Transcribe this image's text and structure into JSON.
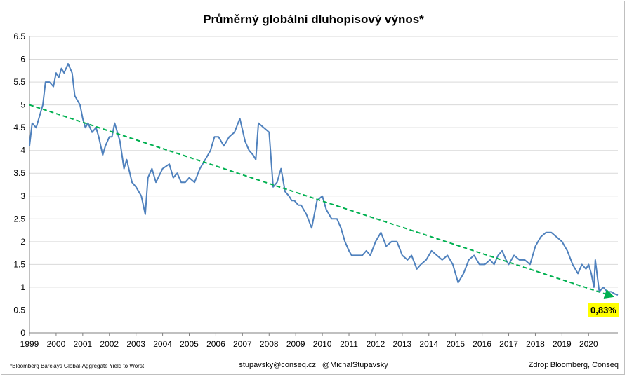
{
  "chart_data": {
    "type": "line",
    "title": "Průměrný globální dluhopisový výnos*",
    "xlabel": "",
    "ylabel": "",
    "x_ticks": [
      "1999",
      "2000",
      "2001",
      "2002",
      "2003",
      "2004",
      "2005",
      "2006",
      "2007",
      "2008",
      "2009",
      "2010",
      "2011",
      "2012",
      "2013",
      "2014",
      "2015",
      "2016",
      "2017",
      "2018",
      "2019",
      "2020"
    ],
    "y_ticks": [
      "0",
      "0.5",
      "1",
      "1.5",
      "2",
      "2.5",
      "3",
      "3.5",
      "4",
      "4.5",
      "5",
      "5.5",
      "6",
      "6.5"
    ],
    "xlim": [
      1999.0,
      2021.1
    ],
    "ylim": [
      0,
      6.5
    ],
    "grid": "horizontal",
    "legend": "none",
    "series": [
      {
        "color": "#4f81bd",
        "x": [
          1999.0,
          1999.1,
          1999.25,
          1999.4,
          1999.5,
          1999.6,
          1999.75,
          1999.9,
          2000.0,
          2000.1,
          2000.2,
          2000.3,
          2000.45,
          2000.6,
          2000.7,
          2000.9,
          2001.0,
          2001.1,
          2001.2,
          2001.35,
          2001.5,
          2001.6,
          2001.75,
          2001.85,
          2002.0,
          2002.1,
          2002.2,
          2002.4,
          2002.55,
          2002.65,
          2002.85,
          2003.0,
          2003.2,
          2003.35,
          2003.45,
          2003.6,
          2003.75,
          2004.0,
          2004.25,
          2004.4,
          2004.55,
          2004.7,
          2004.85,
          2005.0,
          2005.2,
          2005.4,
          2005.6,
          2005.8,
          2005.95,
          2006.1,
          2006.3,
          2006.5,
          2006.7,
          2006.9,
          2007.1,
          2007.25,
          2007.4,
          2007.5,
          2007.6,
          2007.8,
          2008.0,
          2008.15,
          2008.3,
          2008.45,
          2008.6,
          2008.75,
          2008.85,
          2008.95,
          2009.1,
          2009.2,
          2009.4,
          2009.6,
          2009.8,
          2010.0,
          2010.15,
          2010.35,
          2010.55,
          2010.7,
          2010.85,
          2011.0,
          2011.1,
          2011.3,
          2011.5,
          2011.65,
          2011.8,
          2012.0,
          2012.2,
          2012.4,
          2012.6,
          2012.8,
          2013.0,
          2013.2,
          2013.35,
          2013.55,
          2013.7,
          2013.9,
          2014.1,
          2014.3,
          2014.5,
          2014.7,
          2014.9,
          2015.1,
          2015.3,
          2015.5,
          2015.7,
          2015.9,
          2016.1,
          2016.3,
          2016.45,
          2016.6,
          2016.75,
          2016.9,
          2017.0,
          2017.2,
          2017.4,
          2017.6,
          2017.8,
          2018.0,
          2018.2,
          2018.4,
          2018.6,
          2018.8,
          2019.0,
          2019.2,
          2019.4,
          2019.6,
          2019.75,
          2019.9,
          2020.0,
          2020.1,
          2020.2,
          2020.25,
          2020.4,
          2020.55,
          2020.7,
          2020.85,
          2021.0,
          2021.1
        ],
        "values": [
          4.1,
          4.6,
          4.5,
          4.8,
          5.0,
          5.5,
          5.5,
          5.4,
          5.7,
          5.6,
          5.8,
          5.7,
          5.9,
          5.7,
          5.2,
          5.0,
          4.7,
          4.5,
          4.6,
          4.4,
          4.5,
          4.3,
          3.9,
          4.1,
          4.3,
          4.3,
          4.6,
          4.2,
          3.6,
          3.8,
          3.3,
          3.2,
          3.0,
          2.6,
          3.4,
          3.6,
          3.3,
          3.6,
          3.7,
          3.4,
          3.5,
          3.3,
          3.3,
          3.4,
          3.3,
          3.6,
          3.8,
          4.0,
          4.3,
          4.3,
          4.1,
          4.3,
          4.4,
          4.7,
          4.2,
          4.0,
          3.9,
          3.8,
          4.6,
          4.5,
          4.4,
          3.2,
          3.3,
          3.6,
          3.1,
          3.0,
          2.9,
          2.9,
          2.8,
          2.8,
          2.6,
          2.3,
          2.9,
          3.0,
          2.7,
          2.5,
          2.5,
          2.3,
          2.0,
          1.8,
          1.7,
          1.7,
          1.7,
          1.8,
          1.7,
          2.0,
          2.2,
          1.9,
          2.0,
          2.0,
          1.7,
          1.6,
          1.7,
          1.4,
          1.5,
          1.6,
          1.8,
          1.7,
          1.6,
          1.7,
          1.5,
          1.1,
          1.3,
          1.6,
          1.7,
          1.5,
          1.5,
          1.6,
          1.5,
          1.7,
          1.8,
          1.6,
          1.5,
          1.7,
          1.6,
          1.6,
          1.5,
          1.9,
          2.1,
          2.2,
          2.2,
          2.1,
          2.0,
          1.8,
          1.5,
          1.3,
          1.5,
          1.4,
          1.5,
          1.3,
          1.0,
          1.6,
          0.9,
          1.0,
          0.9,
          0.9,
          0.85,
          0.83
        ]
      },
      {
        "color": "#00b050",
        "style": "dashed trend",
        "x": [
          1999.0,
          2020.9
        ],
        "values": [
          5.0,
          0.8
        ]
      }
    ],
    "annotations": [
      "0,83%"
    ]
  },
  "footer": {
    "footnote": "*Bloomberg  Barclays  Global-Aggregate  Yield to Worst",
    "contact": "stupavsky@conseq.cz  |  @MichalStupavsky",
    "source": "Zdroj: Bloomberg, Conseq"
  }
}
